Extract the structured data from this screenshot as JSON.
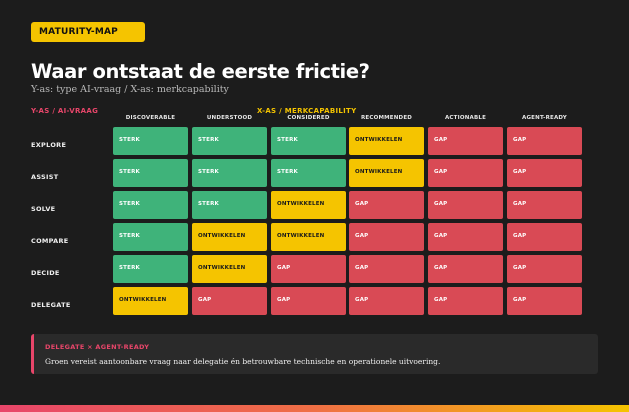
{
  "badge": "MATURITY-MAP",
  "title": "Waar ontstaat de eerste frictie?",
  "subtitle": "Y-as: type AI-vraag  /  X-as: merkcapability",
  "y_axis_label": "Y-AS / AI-VRAAG",
  "x_axis_label": "X-AS / MERKCAPABILITY",
  "columns": [
    "DISCOVERABLE",
    "UNDERSTOOD",
    "CONSIDERED",
    "RECOMMENDED",
    "ACTIONABLE",
    "AGENT-READY"
  ],
  "rows": [
    {
      "label": "EXPLORE",
      "cells": [
        "STERK",
        "STERK",
        "STERK",
        "ONTWIKKELEN",
        "GAP",
        "GAP"
      ]
    },
    {
      "label": "ASSIST",
      "cells": [
        "STERK",
        "STERK",
        "STERK",
        "ONTWIKKELEN",
        "GAP",
        "GAP"
      ]
    },
    {
      "label": "SOLVE",
      "cells": [
        "STERK",
        "STERK",
        "ONTWIKKELEN",
        "GAP",
        "GAP",
        "GAP"
      ]
    },
    {
      "label": "COMPARE",
      "cells": [
        "STERK",
        "ONTWIKKELEN",
        "ONTWIKKELEN",
        "GAP",
        "GAP",
        "GAP"
      ]
    },
    {
      "label": "DECIDE",
      "cells": [
        "STERK",
        "ONTWIKKELEN",
        "GAP",
        "GAP",
        "GAP",
        "GAP"
      ]
    },
    {
      "label": "DELEGATE",
      "cells": [
        "ONTWIKKELEN",
        "GAP",
        "GAP",
        "GAP",
        "GAP",
        "GAP"
      ]
    }
  ],
  "status_colors": {
    "STERK": "#3fb37a",
    "ONTWIKKELEN": "#f5c400",
    "GAP": "#d94a55"
  },
  "note": {
    "title": "DELEGATE × AGENT-READY",
    "text": "Groen vereist aantoonbare vraag naar delegatie én betrouwbare technische en operationele uitvoering."
  }
}
